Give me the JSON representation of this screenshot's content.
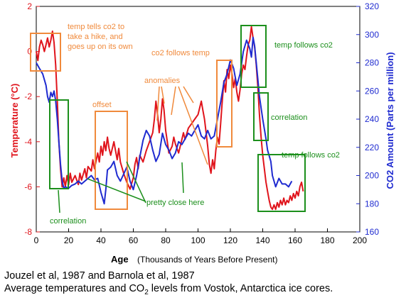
{
  "chart_data": {
    "type": "line",
    "x": {
      "label": "Age",
      "unit_label": "(Thousands of Years Before Present)",
      "range": [
        0,
        200
      ],
      "ticks": [
        0,
        20,
        40,
        60,
        80,
        100,
        120,
        140,
        160,
        180,
        200
      ]
    },
    "y_left": {
      "label": "Temperature (°C)",
      "range": [
        -8,
        2
      ],
      "ticks": [
        2,
        0,
        -2,
        -4,
        -6,
        -8
      ],
      "color": "#e0141c"
    },
    "y_right": {
      "label": "CO2 Amount (Parts per million)",
      "range": [
        160,
        320
      ],
      "ticks": [
        320,
        300,
        280,
        260,
        240,
        220,
        200,
        180,
        160
      ],
      "color": "#1f2bd0"
    },
    "series": [
      {
        "axis": "left",
        "color": "#e0141c",
        "points": [
          [
            0,
            0.0
          ],
          [
            1,
            -0.4
          ],
          [
            2,
            0.2
          ],
          [
            3,
            0.5
          ],
          [
            4,
            0.3
          ],
          [
            5,
            0.0
          ],
          [
            6,
            0.3
          ],
          [
            7,
            0.6
          ],
          [
            8,
            0.2
          ],
          [
            9,
            0.5
          ],
          [
            10,
            0.9
          ],
          [
            11,
            0.4
          ],
          [
            12,
            -0.6
          ],
          [
            13,
            -2.2
          ],
          [
            14,
            -4.0
          ],
          [
            15,
            -5.2
          ],
          [
            16,
            -6.0
          ],
          [
            17,
            -5.6
          ],
          [
            18,
            -6.0
          ],
          [
            19,
            -5.5
          ],
          [
            20,
            -5.9
          ],
          [
            21,
            -5.4
          ],
          [
            22,
            -5.8
          ],
          [
            24,
            -5.5
          ],
          [
            26,
            -5.9
          ],
          [
            27,
            -5.4
          ],
          [
            28,
            -5.7
          ],
          [
            30,
            -5.2
          ],
          [
            31,
            -5.6
          ],
          [
            32,
            -5.1
          ],
          [
            34,
            -5.3
          ],
          [
            35,
            -4.8
          ],
          [
            36,
            -5.2
          ],
          [
            38,
            -4.5
          ],
          [
            39,
            -4.9
          ],
          [
            40,
            -4.2
          ],
          [
            41,
            -4.6
          ],
          [
            42,
            -4.0
          ],
          [
            43,
            -4.4
          ],
          [
            44,
            -3.8
          ],
          [
            45,
            -4.3
          ],
          [
            46,
            -4.6
          ],
          [
            48,
            -4.0
          ],
          [
            50,
            -4.8
          ],
          [
            51,
            -4.3
          ],
          [
            52,
            -4.9
          ],
          [
            54,
            -5.4
          ],
          [
            56,
            -5.8
          ],
          [
            58,
            -6.1
          ],
          [
            60,
            -5.6
          ],
          [
            61,
            -5.0
          ],
          [
            62,
            -4.7
          ],
          [
            63,
            -5.2
          ],
          [
            64,
            -4.6
          ],
          [
            66,
            -4.9
          ],
          [
            68,
            -4.4
          ],
          [
            70,
            -4.0
          ],
          [
            72,
            -3.6
          ],
          [
            73,
            -3.0
          ],
          [
            74,
            -2.2
          ],
          [
            75,
            -2.8
          ],
          [
            76,
            -3.6
          ],
          [
            77,
            -3.0
          ],
          [
            78,
            -2.1
          ],
          [
            79,
            -2.6
          ],
          [
            80,
            -3.5
          ],
          [
            81,
            -4.0
          ],
          [
            82,
            -4.5
          ],
          [
            84,
            -4.2
          ],
          [
            85,
            -3.8
          ],
          [
            86,
            -4.1
          ],
          [
            88,
            -4.5
          ],
          [
            90,
            -3.9
          ],
          [
            91,
            -3.6
          ],
          [
            92,
            -3.9
          ],
          [
            94,
            -3.4
          ],
          [
            96,
            -3.2
          ],
          [
            98,
            -3.0
          ],
          [
            100,
            -2.8
          ],
          [
            101,
            -2.5
          ],
          [
            102,
            -2.2
          ],
          [
            103,
            -2.6
          ],
          [
            104,
            -3.0
          ],
          [
            105,
            -3.6
          ],
          [
            106,
            -4.2
          ],
          [
            107,
            -5.0
          ],
          [
            108,
            -5.4
          ],
          [
            109,
            -4.8
          ],
          [
            110,
            -5.2
          ],
          [
            111,
            -4.4
          ],
          [
            112,
            -3.8
          ],
          [
            113,
            -4.1
          ],
          [
            114,
            -3.2
          ],
          [
            115,
            -2.2
          ],
          [
            116,
            -1.3
          ],
          [
            117,
            -1.8
          ],
          [
            118,
            -0.8
          ],
          [
            119,
            -1.2
          ],
          [
            120,
            -0.6
          ],
          [
            121,
            -1.0
          ],
          [
            122,
            -1.6
          ],
          [
            123,
            -1.2
          ],
          [
            124,
            -1.8
          ],
          [
            125,
            -2.2
          ],
          [
            126,
            -1.7
          ],
          [
            127,
            -1.0
          ],
          [
            128,
            -0.6
          ],
          [
            129,
            -0.8
          ],
          [
            130,
            -0.2
          ],
          [
            131,
            0.3
          ],
          [
            132,
            0.5
          ],
          [
            133,
            1.1
          ],
          [
            134,
            0.6
          ],
          [
            135,
            0.2
          ],
          [
            136,
            -0.6
          ],
          [
            137,
            -1.6
          ],
          [
            138,
            -2.8
          ],
          [
            139,
            -3.8
          ],
          [
            140,
            -4.6
          ],
          [
            141,
            -5.2
          ],
          [
            142,
            -5.8
          ],
          [
            143,
            -6.2
          ],
          [
            144,
            -6.6
          ],
          [
            145,
            -6.9
          ],
          [
            146,
            -7.0
          ],
          [
            147,
            -6.8
          ],
          [
            148,
            -7.0
          ],
          [
            149,
            -6.7
          ],
          [
            150,
            -6.9
          ],
          [
            151,
            -6.6
          ],
          [
            152,
            -6.8
          ],
          [
            153,
            -6.5
          ],
          [
            154,
            -6.8
          ],
          [
            155,
            -6.6
          ],
          [
            156,
            -6.7
          ],
          [
            157,
            -6.4
          ],
          [
            158,
            -6.6
          ],
          [
            159,
            -6.3
          ],
          [
            160,
            -6.5
          ],
          [
            161,
            -6.2
          ],
          [
            162,
            -6.4
          ],
          [
            163,
            -6.0
          ],
          [
            164,
            -5.8
          ],
          [
            165,
            -6.2
          ]
        ]
      },
      {
        "axis": "right",
        "color": "#1f2bd0",
        "points": [
          [
            0,
            280
          ],
          [
            2,
            276
          ],
          [
            4,
            272
          ],
          [
            6,
            264
          ],
          [
            7,
            256
          ],
          [
            8,
            252
          ],
          [
            9,
            259
          ],
          [
            10,
            256
          ],
          [
            11,
            260
          ],
          [
            12,
            253
          ],
          [
            13,
            240
          ],
          [
            14,
            224
          ],
          [
            15,
            208
          ],
          [
            16,
            196
          ],
          [
            17,
            191
          ],
          [
            18,
            192
          ],
          [
            20,
            191
          ],
          [
            22,
            193
          ],
          [
            24,
            194
          ],
          [
            26,
            196
          ],
          [
            28,
            194
          ],
          [
            30,
            196
          ],
          [
            32,
            198
          ],
          [
            34,
            200
          ],
          [
            36,
            197
          ],
          [
            38,
            198
          ],
          [
            40,
            188
          ],
          [
            41,
            184
          ],
          [
            42,
            180
          ],
          [
            43,
            190
          ],
          [
            44,
            204
          ],
          [
            46,
            206
          ],
          [
            48,
            210
          ],
          [
            50,
            200
          ],
          [
            52,
            196
          ],
          [
            54,
            201
          ],
          [
            56,
            206
          ],
          [
            58,
            196
          ],
          [
            60,
            190
          ],
          [
            62,
            200
          ],
          [
            64,
            213
          ],
          [
            66,
            225
          ],
          [
            68,
            232
          ],
          [
            70,
            228
          ],
          [
            72,
            218
          ],
          [
            74,
            210
          ],
          [
            76,
            215
          ],
          [
            78,
            230
          ],
          [
            80,
            222
          ],
          [
            82,
            218
          ],
          [
            84,
            212
          ],
          [
            86,
            216
          ],
          [
            88,
            224
          ],
          [
            90,
            222
          ],
          [
            92,
            226
          ],
          [
            94,
            230
          ],
          [
            96,
            228
          ],
          [
            98,
            232
          ],
          [
            100,
            236
          ],
          [
            102,
            228
          ],
          [
            104,
            226
          ],
          [
            106,
            232
          ],
          [
            108,
            226
          ],
          [
            110,
            228
          ],
          [
            112,
            240
          ],
          [
            114,
            252
          ],
          [
            116,
            266
          ],
          [
            118,
            272
          ],
          [
            120,
            282
          ],
          [
            122,
            276
          ],
          [
            123,
            270
          ],
          [
            124,
            264
          ],
          [
            126,
            272
          ],
          [
            128,
            288
          ],
          [
            130,
            296
          ],
          [
            132,
            290
          ],
          [
            133,
            284
          ],
          [
            134,
            298
          ],
          [
            135,
            292
          ],
          [
            136,
            280
          ],
          [
            137,
            268
          ],
          [
            138,
            256
          ],
          [
            140,
            240
          ],
          [
            142,
            226
          ],
          [
            143,
            218
          ],
          [
            144,
            214
          ],
          [
            145,
            210
          ],
          [
            146,
            200
          ],
          [
            148,
            192
          ],
          [
            150,
            198
          ],
          [
            152,
            194
          ],
          [
            154,
            194
          ],
          [
            156,
            192
          ],
          [
            158,
            196
          ]
        ]
      }
    ],
    "annotations": [
      {
        "text": [
          "temp tells co2 to",
          "take a hike, and",
          "goes up on its own"
        ],
        "color": "#f08a3c"
      },
      {
        "text": [
          "offset"
        ],
        "color": "#f08a3c"
      },
      {
        "text": [
          "anomalies"
        ],
        "color": "#f08a3c"
      },
      {
        "text": [
          "co2 follows temp"
        ],
        "color": "#f08a3c"
      },
      {
        "text": [
          "temp follows co2"
        ],
        "color": "#1c8f1c"
      },
      {
        "text": [
          "correlation"
        ],
        "color": "#1c8f1c"
      },
      {
        "text": [
          "temp follows co2"
        ],
        "color": "#1c8f1c"
      },
      {
        "text": [
          "pretty close here"
        ],
        "color": "#1c8f1c"
      },
      {
        "text": [
          "correlation"
        ],
        "color": "#1c8f1c"
      }
    ],
    "caption_line1": "Jouzel et al, 1987 and Barnola et al, 1987",
    "caption_line2_a": "Average temperatures and CO",
    "caption_line2_sub": "2",
    "caption_line2_b": " levels from Vostok, Antarctica ice cores."
  }
}
